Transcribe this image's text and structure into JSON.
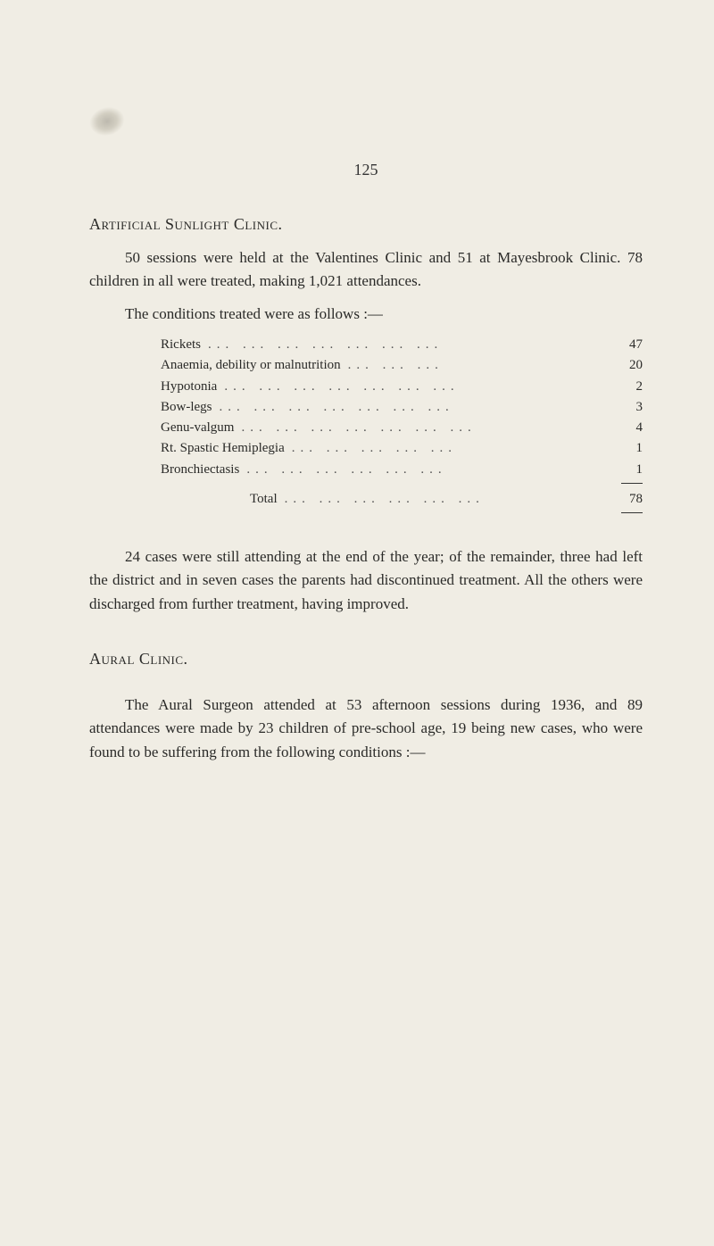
{
  "page_number": "125",
  "section1": {
    "heading": "Artificial Sunlight Clinic.",
    "para1": "50 sessions were held at the Valentines Clinic and 51 at Mayesbrook Clinic. 78 children in all were treated, making 1,021 attendances.",
    "para2": "The conditions treated were as follows :—"
  },
  "conditions": {
    "rows": [
      {
        "label": "Rickets",
        "value": "47"
      },
      {
        "label": "Anaemia, debility or malnutrition",
        "value": "20"
      },
      {
        "label": "Hypotonia",
        "value": "2"
      },
      {
        "label": "Bow-legs",
        "value": "3"
      },
      {
        "label": "Genu-valgum",
        "value": "4"
      },
      {
        "label": "Rt. Spastic Hemiplegia",
        "value": "1"
      },
      {
        "label": "Bronchiectasis",
        "value": "1"
      }
    ],
    "total_label": "Total",
    "total_value": "78"
  },
  "section1_para3": "24 cases were still attending at the end of the year; of the remainder, three had left the district and in seven cases the parents had discontinued treatment. All the others were discharged from further treatment, having improved.",
  "section2": {
    "heading": "Aural Clinic.",
    "para1": "The Aural Surgeon attended at 53 afternoon sessions during 1936, and 89 attendances were made by 23 children of pre-school age, 19 being new cases, who were found to be suffering from the following conditions :—"
  },
  "colors": {
    "background": "#f0ede4",
    "text": "#2a2a28"
  },
  "typography": {
    "body_fontsize": 17,
    "table_fontsize": 15,
    "heading_fontsize": 18
  }
}
